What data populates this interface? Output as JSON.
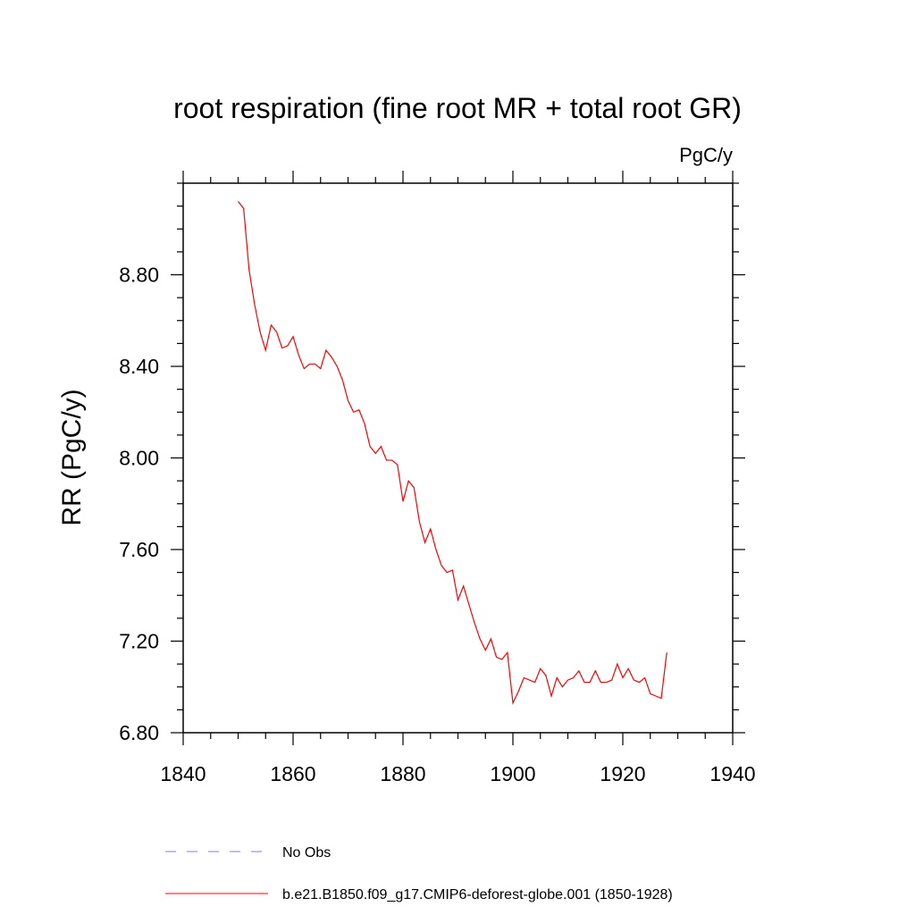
{
  "chart_data": {
    "type": "line",
    "title": "root respiration (fine root MR + total root GR)",
    "units": "PgC/y",
    "ylabel": "RR  (PgC/y)",
    "xlabel": "",
    "xlim": [
      1840,
      1940
    ],
    "ylim": [
      6.8,
      9.2
    ],
    "x_ticks": [
      1840,
      1860,
      1880,
      1900,
      1920,
      1940
    ],
    "x_tick_labels": [
      "1840",
      "1860",
      "1880",
      "1900",
      "1920",
      "1940"
    ],
    "y_ticks": [
      6.8,
      7.2,
      7.6,
      8.0,
      8.4,
      8.8
    ],
    "y_tick_labels": [
      "6.80",
      "7.20",
      "7.60",
      "8.00",
      "8.40",
      "8.80"
    ],
    "legend": [
      {
        "label": "No Obs",
        "color": "#7f7fd1",
        "style": "dashed"
      },
      {
        "label": "b.e21.B1850.f09_g17.CMIP6-deforest-globe.001 (1850-1928)",
        "color": "#ff0000",
        "style": "solid"
      }
    ],
    "series": [
      {
        "name": "b.e21.B1850.f09_g17.CMIP6-deforest-globe.001 (1850-1928)",
        "color": "#ff0000",
        "x": [
          1850,
          1851,
          1852,
          1853,
          1854,
          1855,
          1856,
          1857,
          1858,
          1859,
          1860,
          1861,
          1862,
          1863,
          1864,
          1865,
          1866,
          1867,
          1868,
          1869,
          1870,
          1871,
          1872,
          1873,
          1874,
          1875,
          1876,
          1877,
          1878,
          1879,
          1880,
          1881,
          1882,
          1883,
          1884,
          1885,
          1886,
          1887,
          1888,
          1889,
          1890,
          1891,
          1892,
          1893,
          1894,
          1895,
          1896,
          1897,
          1898,
          1899,
          1900,
          1901,
          1902,
          1903,
          1904,
          1905,
          1906,
          1907,
          1908,
          1909,
          1910,
          1911,
          1912,
          1913,
          1914,
          1915,
          1916,
          1917,
          1918,
          1919,
          1920,
          1921,
          1922,
          1923,
          1924,
          1925,
          1926,
          1927,
          1928
        ],
        "values": [
          9.12,
          9.09,
          8.82,
          8.67,
          8.55,
          8.47,
          8.58,
          8.55,
          8.48,
          8.49,
          8.53,
          8.45,
          8.39,
          8.41,
          8.41,
          8.39,
          8.47,
          8.44,
          8.4,
          8.34,
          8.25,
          8.2,
          8.21,
          8.15,
          8.05,
          8.02,
          8.05,
          7.99,
          7.99,
          7.97,
          7.81,
          7.9,
          7.87,
          7.72,
          7.63,
          7.69,
          7.6,
          7.53,
          7.5,
          7.51,
          7.38,
          7.44,
          7.36,
          7.28,
          7.21,
          7.16,
          7.21,
          7.13,
          7.12,
          7.15,
          6.93,
          6.98,
          7.04,
          7.03,
          7.02,
          7.08,
          7.05,
          6.96,
          7.04,
          7.0,
          7.03,
          7.04,
          7.07,
          7.02,
          7.02,
          7.07,
          7.02,
          7.02,
          7.03,
          7.1,
          7.04,
          7.08,
          7.03,
          7.02,
          7.04,
          6.97,
          6.96,
          6.95,
          7.15
        ]
      }
    ]
  }
}
